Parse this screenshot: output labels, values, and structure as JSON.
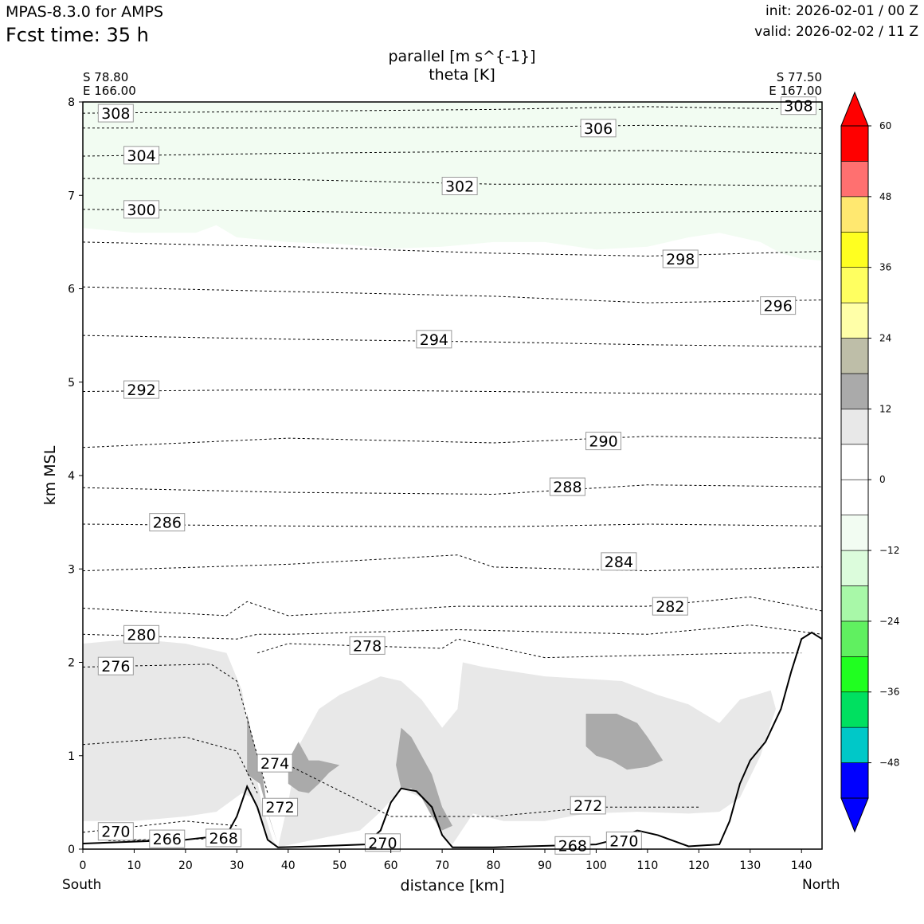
{
  "header": {
    "model": "MPAS-8.3.0 for AMPS",
    "fcst_time": "Fcst time:   35 h",
    "init": "init: 2026-02-01 / 00 Z",
    "valid": "valid: 2026-02-02 / 11 Z"
  },
  "titles": {
    "line1": "parallel [m s^{-1}]",
    "line2": "theta [K]"
  },
  "endpoints": {
    "start_lat": "S 78.80",
    "start_lon": "E 166.00",
    "end_lat": "S 77.50",
    "end_lon": "E 167.00",
    "left_label": "South",
    "right_label": "North"
  },
  "chart_data": {
    "type": "contour cross-section",
    "xlabel": "distance [km]",
    "ylabel": "km MSL",
    "xlim": [
      0,
      144
    ],
    "ylim": [
      0,
      8
    ],
    "x_ticks": [
      0,
      10,
      20,
      30,
      40,
      50,
      60,
      70,
      80,
      90,
      100,
      110,
      120,
      130,
      140
    ],
    "y_ticks": [
      0,
      1,
      2,
      3,
      4,
      5,
      6,
      7,
      8
    ],
    "colorbar": {
      "bounds": [
        -54,
        -48,
        -42,
        -36,
        -30,
        -24,
        -18,
        -12,
        -6,
        0,
        6,
        12,
        18,
        24,
        30,
        36,
        42,
        48,
        54,
        60
      ],
      "colors": [
        "#0000ff",
        "#00c8c8",
        "#00e060",
        "#20ff20",
        "#60f060",
        "#a8f8a8",
        "#dcfcdc",
        "#f2fcf2",
        "#ffffff",
        "#ffffff",
        "#e8e8e8",
        "#aaaaaa",
        "#bebea8",
        "#ffffa8",
        "#ffff60",
        "#ffff20",
        "#ffe870",
        "#ff7070",
        "#ff0000"
      ],
      "under_color": "#0000ff",
      "over_color": "#ff0000",
      "tick_labels": [
        60,
        48,
        36,
        24,
        12,
        0,
        -12,
        -24,
        -36,
        -48
      ]
    },
    "terrain": [
      [
        0,
        0.06
      ],
      [
        10,
        0.08
      ],
      [
        20,
        0.1
      ],
      [
        28,
        0.15
      ],
      [
        30,
        0.35
      ],
      [
        32,
        0.67
      ],
      [
        34,
        0.45
      ],
      [
        36,
        0.1
      ],
      [
        38,
        0.02
      ],
      [
        45,
        0.03
      ],
      [
        55,
        0.05
      ],
      [
        58,
        0.2
      ],
      [
        60,
        0.5
      ],
      [
        62,
        0.65
      ],
      [
        65,
        0.62
      ],
      [
        68,
        0.45
      ],
      [
        70,
        0.15
      ],
      [
        72,
        0.02
      ],
      [
        80,
        0.02
      ],
      [
        100,
        0.05
      ],
      [
        105,
        0.12
      ],
      [
        108,
        0.2
      ],
      [
        112,
        0.15
      ],
      [
        118,
        0.03
      ],
      [
        124,
        0.05
      ],
      [
        126,
        0.3
      ],
      [
        128,
        0.7
      ],
      [
        130,
        0.95
      ],
      [
        133,
        1.15
      ],
      [
        136,
        1.5
      ],
      [
        138,
        1.9
      ],
      [
        140,
        2.25
      ],
      [
        142,
        2.32
      ],
      [
        144,
        2.25
      ]
    ],
    "theta_contours": [
      {
        "theta": 308,
        "points": [
          [
            0,
            7.88
          ],
          [
            40,
            7.9
          ],
          [
            80,
            7.92
          ],
          [
            110,
            7.95
          ],
          [
            144,
            7.92
          ]
        ]
      },
      {
        "theta": 306,
        "points": [
          [
            0,
            7.72
          ],
          [
            40,
            7.72
          ],
          [
            80,
            7.73
          ],
          [
            110,
            7.75
          ],
          [
            144,
            7.72
          ]
        ]
      },
      {
        "theta": 304,
        "points": [
          [
            0,
            7.42
          ],
          [
            40,
            7.45
          ],
          [
            80,
            7.47
          ],
          [
            110,
            7.48
          ],
          [
            144,
            7.45
          ]
        ]
      },
      {
        "theta": 302,
        "points": [
          [
            0,
            7.18
          ],
          [
            40,
            7.17
          ],
          [
            80,
            7.12
          ],
          [
            110,
            7.12
          ],
          [
            144,
            7.1
          ]
        ]
      },
      {
        "theta": 300,
        "points": [
          [
            0,
            6.85
          ],
          [
            40,
            6.83
          ],
          [
            80,
            6.8
          ],
          [
            110,
            6.82
          ],
          [
            144,
            6.83
          ]
        ]
      },
      {
        "theta": 298,
        "points": [
          [
            0,
            6.5
          ],
          [
            40,
            6.45
          ],
          [
            80,
            6.38
          ],
          [
            110,
            6.35
          ],
          [
            144,
            6.4
          ]
        ]
      },
      {
        "theta": 296,
        "points": [
          [
            0,
            6.02
          ],
          [
            40,
            5.97
          ],
          [
            80,
            5.92
          ],
          [
            110,
            5.85
          ],
          [
            144,
            5.88
          ]
        ]
      },
      {
        "theta": 294,
        "points": [
          [
            0,
            5.5
          ],
          [
            40,
            5.46
          ],
          [
            80,
            5.43
          ],
          [
            110,
            5.4
          ],
          [
            144,
            5.38
          ]
        ]
      },
      {
        "theta": 292,
        "points": [
          [
            0,
            4.9
          ],
          [
            40,
            4.92
          ],
          [
            80,
            4.9
          ],
          [
            110,
            4.88
          ],
          [
            144,
            4.87
          ]
        ]
      },
      {
        "theta": 290,
        "points": [
          [
            0,
            4.3
          ],
          [
            40,
            4.4
          ],
          [
            80,
            4.35
          ],
          [
            110,
            4.42
          ],
          [
            144,
            4.4
          ]
        ]
      },
      {
        "theta": 288,
        "points": [
          [
            0,
            3.87
          ],
          [
            40,
            3.82
          ],
          [
            80,
            3.8
          ],
          [
            110,
            3.9
          ],
          [
            144,
            3.88
          ]
        ]
      },
      {
        "theta": 286,
        "points": [
          [
            0,
            3.48
          ],
          [
            40,
            3.46
          ],
          [
            80,
            3.45
          ],
          [
            110,
            3.48
          ],
          [
            144,
            3.46
          ]
        ]
      },
      {
        "theta": 284,
        "points": [
          [
            0,
            2.98
          ],
          [
            40,
            3.05
          ],
          [
            73,
            3.15
          ],
          [
            80,
            3.02
          ],
          [
            110,
            2.98
          ],
          [
            144,
            3.02
          ]
        ]
      },
      {
        "theta": 282,
        "points": [
          [
            0,
            2.58
          ],
          [
            28,
            2.5
          ],
          [
            32,
            2.65
          ],
          [
            40,
            2.5
          ],
          [
            73,
            2.6
          ],
          [
            110,
            2.6
          ],
          [
            130,
            2.7
          ],
          [
            144,
            2.55
          ]
        ]
      },
      {
        "theta": 280,
        "points": [
          [
            0,
            2.3
          ],
          [
            30,
            2.25
          ],
          [
            34,
            2.3
          ],
          [
            40,
            2.3
          ],
          [
            73,
            2.35
          ],
          [
            110,
            2.3
          ],
          [
            130,
            2.4
          ],
          [
            144,
            2.3
          ]
        ]
      },
      {
        "theta": 278,
        "points": [
          [
            34,
            2.1
          ],
          [
            40,
            2.2
          ],
          [
            70,
            2.15
          ],
          [
            73,
            2.25
          ],
          [
            90,
            2.05
          ],
          [
            130,
            2.1
          ],
          [
            140,
            2.1
          ]
        ]
      },
      {
        "theta": 276,
        "points": [
          [
            0,
            1.95
          ],
          [
            25,
            1.98
          ],
          [
            30,
            1.8
          ],
          [
            34,
            1.0
          ],
          [
            36,
            0.6
          ]
        ]
      },
      {
        "theta": 274,
        "points": [
          [
            0,
            1.12
          ],
          [
            20,
            1.2
          ],
          [
            30,
            1.05
          ],
          [
            34,
            0.6
          ]
        ]
      },
      {
        "theta": 272,
        "points": [
          [
            40,
            0.9
          ],
          [
            60,
            0.35
          ],
          [
            80,
            0.35
          ],
          [
            100,
            0.45
          ],
          [
            120,
            0.45
          ]
        ]
      },
      {
        "theta": 270,
        "points": [
          [
            0,
            0.18
          ],
          [
            20,
            0.3
          ],
          [
            30,
            0.25
          ]
        ]
      },
      {
        "theta": 268,
        "points": [
          [
            10,
            0.1
          ],
          [
            25,
            0.11
          ],
          [
            28,
            0.15
          ]
        ]
      },
      {
        "theta": 266,
        "points": [
          [
            5,
            0.09
          ],
          [
            20,
            0.1
          ]
        ]
      }
    ],
    "contour_labels": [
      {
        "text": "308",
        "x": 3,
        "y": 7.88
      },
      {
        "text": "308",
        "x": 136,
        "y": 7.96
      },
      {
        "text": "306",
        "x": 97,
        "y": 7.72
      },
      {
        "text": "304",
        "x": 8,
        "y": 7.43
      },
      {
        "text": "302",
        "x": 70,
        "y": 7.1
      },
      {
        "text": "300",
        "x": 8,
        "y": 6.85
      },
      {
        "text": "298",
        "x": 113,
        "y": 6.32
      },
      {
        "text": "296",
        "x": 132,
        "y": 5.82
      },
      {
        "text": "294",
        "x": 65,
        "y": 5.46
      },
      {
        "text": "292",
        "x": 8,
        "y": 4.92
      },
      {
        "text": "290",
        "x": 98,
        "y": 4.37
      },
      {
        "text": "288",
        "x": 91,
        "y": 3.88
      },
      {
        "text": "286",
        "x": 13,
        "y": 3.5
      },
      {
        "text": "284",
        "x": 101,
        "y": 3.08
      },
      {
        "text": "282",
        "x": 111,
        "y": 2.6
      },
      {
        "text": "280",
        "x": 8,
        "y": 2.3
      },
      {
        "text": "278",
        "x": 52,
        "y": 2.18
      },
      {
        "text": "276",
        "x": 3,
        "y": 1.96
      },
      {
        "text": "274",
        "x": 34,
        "y": 0.92
      },
      {
        "text": "272",
        "x": 35,
        "y": 0.45
      },
      {
        "text": "272",
        "x": 95,
        "y": 0.47
      },
      {
        "text": "270",
        "x": 3,
        "y": 0.19
      },
      {
        "text": "270",
        "x": 55,
        "y": 0.07
      },
      {
        "text": "270",
        "x": 102,
        "y": 0.09
      },
      {
        "text": "268",
        "x": 24,
        "y": 0.12
      },
      {
        "text": "268",
        "x": 92,
        "y": 0.04
      },
      {
        "text": "266",
        "x": 13,
        "y": 0.11
      }
    ]
  }
}
